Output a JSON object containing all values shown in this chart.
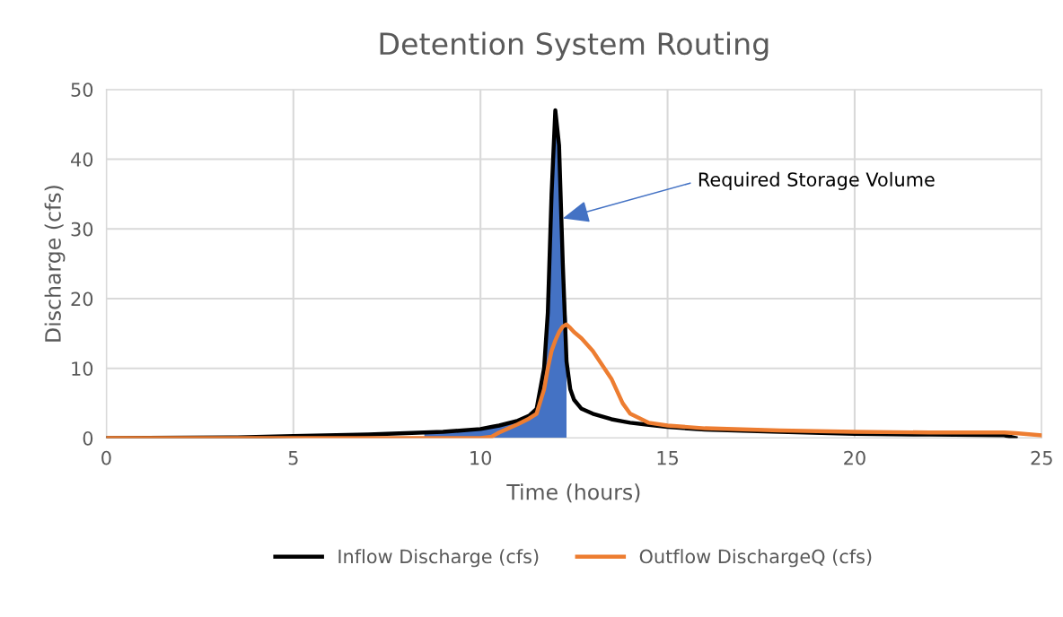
{
  "chart_data": {
    "type": "line",
    "title": "Detention System Routing",
    "xlabel": "Time (hours)",
    "ylabel": "Discharge (cfs)",
    "x": [
      0,
      3.5,
      5,
      7,
      8,
      8.5,
      9,
      10,
      10.3,
      10.5,
      11,
      11.3,
      11.5,
      11.7,
      11.8,
      11.9,
      12,
      12.1,
      12.2,
      12.3,
      12.4,
      12.5,
      12.7,
      13,
      13.5,
      13.8,
      14,
      14.5,
      15,
      16,
      18,
      20,
      22,
      24,
      24.3,
      25
    ],
    "series": [
      {
        "type": "area",
        "color": "#4472c4",
        "values": [
          null,
          null,
          null,
          null,
          null,
          0.8,
          0.9,
          1.3,
          1.6,
          1.8,
          2.5,
          3.2,
          4.2,
          10,
          18,
          35,
          44,
          40,
          25,
          16.3,
          null,
          null,
          null,
          null,
          null,
          null,
          null,
          null,
          null,
          null,
          null,
          null,
          null,
          null,
          null,
          null
        ]
      },
      {
        "name": "Inflow Discharge (cfs)",
        "color": "#000000",
        "values": [
          0,
          0.1,
          0.3,
          0.5,
          0.7,
          0.8,
          0.9,
          1.3,
          1.6,
          1.8,
          2.5,
          3.2,
          4.2,
          10,
          18,
          35,
          47,
          42,
          25,
          11,
          7,
          5.5,
          4.2,
          3.5,
          2.7,
          2.4,
          2.2,
          1.9,
          1.6,
          1.2,
          0.9,
          0.6,
          0.5,
          0.4,
          0,
          null
        ]
      },
      {
        "name": "Outflow DischargeQ (cfs)",
        "color": "#ed7d31",
        "values": [
          0,
          0,
          0,
          0,
          0,
          0,
          0,
          0,
          0.2,
          0.8,
          2,
          2.8,
          3.5,
          7,
          10,
          12.5,
          14,
          15.2,
          16,
          16.3,
          15.8,
          15.2,
          14.3,
          12.5,
          8.5,
          5,
          3.5,
          2.2,
          1.8,
          1.4,
          1.1,
          0.9,
          0.8,
          0.8,
          0.7,
          0.4
        ]
      }
    ],
    "annotations": [
      {
        "text": "Required Storage Volume",
        "x": 12.2,
        "y": 31.5
      }
    ],
    "xlim": [
      0,
      25
    ],
    "xticks": [
      0,
      5,
      10,
      15,
      20,
      25
    ],
    "ylim": [
      0,
      50
    ],
    "yticks": [
      0,
      10,
      20,
      30,
      40,
      50
    ],
    "grid": true,
    "legend": "bottom",
    "marker": "none",
    "line_style": "solid"
  }
}
